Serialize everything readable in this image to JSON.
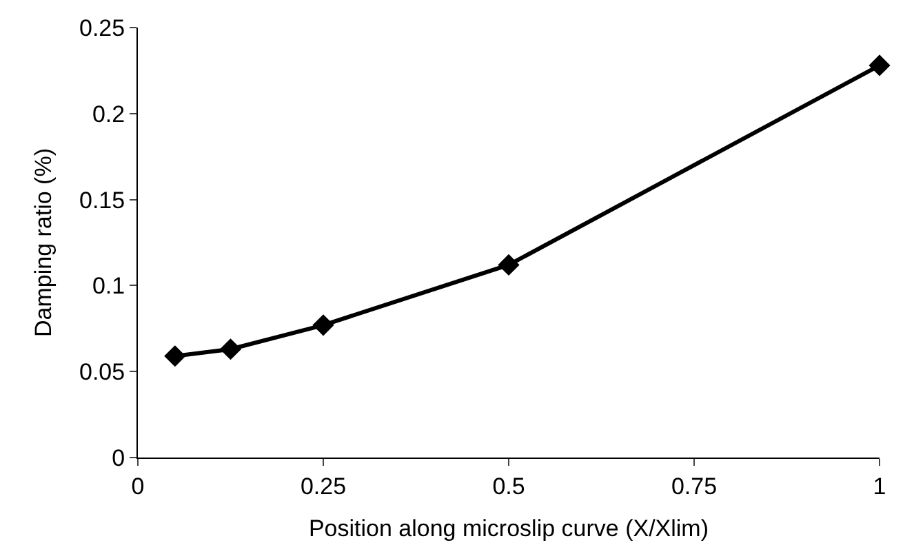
{
  "chart_data": {
    "type": "line",
    "xlabel": "Position along microslip curve (X/Xlim)",
    "ylabel": "Damping ratio (%)",
    "x": [
      0.05,
      0.125,
      0.25,
      0.5,
      1
    ],
    "series": [
      {
        "color": "#000000",
        "values": [
          0.059,
          0.063,
          0.077,
          0.112,
          0.228
        ]
      }
    ],
    "xlim": [
      0,
      1
    ],
    "xticks": [
      0,
      0.25,
      0.5,
      0.75,
      1
    ],
    "ylim": [
      0,
      0.25
    ],
    "yticks": [
      0,
      0.05,
      0.1,
      0.15,
      0.2,
      0.25
    ],
    "marker": "diamond",
    "line_style": "solid"
  }
}
